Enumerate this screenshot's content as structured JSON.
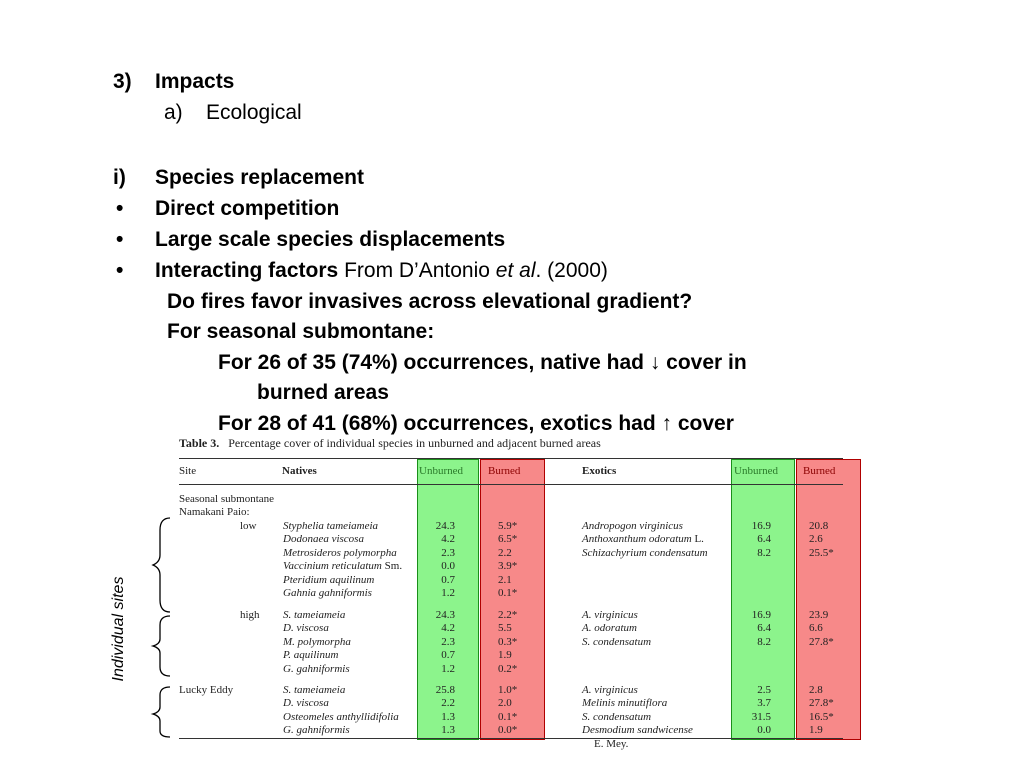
{
  "outline": {
    "section_number": "3)",
    "section_title": "Impacts",
    "sub_letter": "a)",
    "sub_title": "Ecological"
  },
  "items": {
    "numbered_marker": "i)",
    "numbered_text": "Species replacement",
    "bullet_char": "•",
    "bullets": [
      "Direct competition",
      "Large scale species displacements"
    ],
    "bullet3_bold": "Interacting factors",
    "bullet3_from": "From D’Antonio",
    "bullet3_etal": "et al",
    "bullet3_year": ". (2000)",
    "question": "Do fires favor invasives across elevational gradient?",
    "subhead": "For seasonal submontane:",
    "line1a": "For 26 of 35 (74%) occurrences, native had ↓ cover in",
    "line1b": "burned areas",
    "line2": "For 28 of 41 (68%) occurrences, exotics had ↑ cover"
  },
  "side_label": "Individual sites",
  "table": {
    "label": "Table 3.",
    "caption": "Percentage cover of individual species in unburned and adjacent burned areas",
    "headers": {
      "site": "Site",
      "natives": "Natives",
      "unburned": "Unburned",
      "burned": "Burned",
      "exotics": "Exotics"
    },
    "site_lines": [
      "Seasonal submontane",
      "Namakani Paio:"
    ],
    "sub_low": "low",
    "sub_high": "high",
    "site_lucky": "Lucky Eddy",
    "native_low": [
      {
        "name": "Styphelia tameiameia",
        "suffix": "",
        "u": "24.3",
        "b": "5.9*"
      },
      {
        "name": "Dodonaea viscosa",
        "suffix": "",
        "u": "4.2",
        "b": "6.5*"
      },
      {
        "name": "Metrosideros polymorpha",
        "suffix": "",
        "u": "2.3",
        "b": "2.2"
      },
      {
        "name": "Vaccinium reticulatum",
        "suffix": " Sm.",
        "u": "0.0",
        "b": "3.9*"
      },
      {
        "name": "Pteridium aquilinum",
        "suffix": "",
        "u": "0.7",
        "b": "2.1"
      },
      {
        "name": "Gahnia gahniformis",
        "suffix": "",
        "u": "1.2",
        "b": "0.1*"
      }
    ],
    "native_high": [
      {
        "name": "S. tameiameia",
        "u": "24.3",
        "b": "2.2*"
      },
      {
        "name": "D. viscosa",
        "u": "4.2",
        "b": "5.5"
      },
      {
        "name": "M. polymorpha",
        "u": "2.3",
        "b": "0.3*"
      },
      {
        "name": "P. aquilinum",
        "u": "0.7",
        "b": "1.9"
      },
      {
        "name": "G. gahniformis",
        "u": "1.2",
        "b": "0.2*"
      }
    ],
    "native_lucky": [
      {
        "name": "S. tameiameia",
        "u": "25.8",
        "b": "1.0*"
      },
      {
        "name": "D. viscosa",
        "u": "2.2",
        "b": "2.0"
      },
      {
        "name": "Osteomeles anthyllidifolia",
        "u": "1.3",
        "b": "0.1*"
      },
      {
        "name": "G. gahniformis",
        "u": "1.3",
        "b": "0.0*"
      }
    ],
    "exotic_low": [
      {
        "name": "Andropogon virginicus",
        "suffix": "",
        "u": "16.9",
        "b": "20.8"
      },
      {
        "name": "Anthoxanthum odoratum",
        "suffix": " L.",
        "u": "6.4",
        "b": "2.6"
      },
      {
        "name": "Schizachyrium condensatum",
        "suffix": "",
        "u": "8.2",
        "b": "25.5*"
      }
    ],
    "exotic_high": [
      {
        "name": "A. virginicus",
        "u": "16.9",
        "b": "23.9"
      },
      {
        "name": "A. odoratum",
        "u": "6.4",
        "b": "6.6"
      },
      {
        "name": "S. condensatum",
        "u": "8.2",
        "b": "27.8*"
      }
    ],
    "exotic_lucky": [
      {
        "name": "A. virginicus",
        "u": "2.5",
        "b": "2.8"
      },
      {
        "name": "Melinis minutiflora",
        "u": "3.7",
        "b": "27.8*"
      },
      {
        "name": "S. condensatum",
        "u": "31.5",
        "b": "16.5*"
      },
      {
        "name": "Desmodium sandwicense",
        "u": "0.0",
        "b": "1.9"
      }
    ],
    "exotic_tail": "E. Mey."
  },
  "colors": {
    "unburned_highlight": "#00e600",
    "burned_highlight": "#f02828"
  }
}
